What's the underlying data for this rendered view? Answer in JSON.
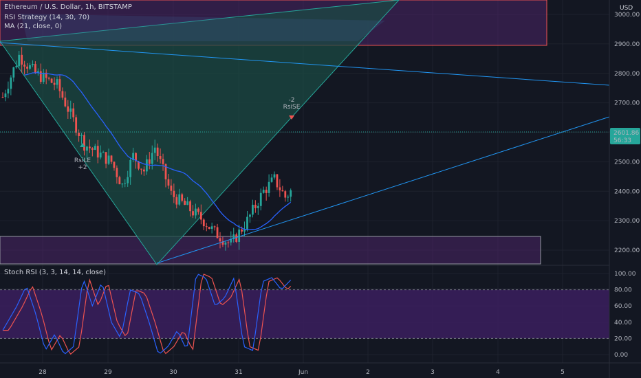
{
  "header": {
    "title": "Ethereum / U.S. Dollar, 1h, BITSTAMP",
    "strategy": "RSI Strategy (14, 30, 70)",
    "ma": "MA (21, close, 0)",
    "currency": "USD"
  },
  "price_panel": {
    "ticks": [
      "3000.00",
      "2900.00",
      "2800.00",
      "2700.00",
      "2600.00",
      "2500.00",
      "2400.00",
      "2300.00",
      "2200.00"
    ],
    "last_price": "2601.86",
    "countdown": "56:33"
  },
  "stoch_panel": {
    "label": "Stoch RSI (3, 3, 14, 14, close)",
    "ticks": [
      "100.00",
      "80.00",
      "60.00",
      "40.00",
      "20.00",
      "0.00"
    ]
  },
  "time_axis": {
    "labels": [
      "28",
      "29",
      "30",
      "31",
      "Jun",
      "2",
      "3",
      "4",
      "5"
    ]
  },
  "signals": {
    "long_label": "RsiLE",
    "long_qty": "+2",
    "short_label": "RsiSE",
    "short_qty": "-2"
  },
  "colors": {
    "background": "#131722",
    "up": "#26a69a",
    "down": "#ef5350",
    "ma": "#2962ff",
    "trendline": "#2196f3",
    "zone_fill": "#4a2466",
    "zone_border": "#ef5350",
    "triangle_fill": "#1b4a43",
    "stoch_k": "#2962ff",
    "stoch_d": "#ef5350",
    "stoch_band": "#3b1f5e"
  },
  "chart_data": {
    "type": "candlestick",
    "symbol": "ETHUSD",
    "interval": "1h",
    "price_range": [
      2160,
      3040
    ],
    "last_price": 2601.86,
    "ma_period": 21,
    "x_axis_days": [
      "28",
      "29",
      "30",
      "31",
      "Jun",
      "2",
      "3",
      "4",
      "5"
    ],
    "overlays": [
      "ascending trendline",
      "descending trendline",
      "V triangle drawing",
      "supply zone 2900-3040",
      "demand zone 2160-2245"
    ],
    "stoch_rsi": {
      "levels": [
        20,
        80
      ],
      "range": [
        0,
        100
      ],
      "series": [
        {
          "name": "K"
        },
        {
          "name": "D"
        }
      ]
    }
  }
}
